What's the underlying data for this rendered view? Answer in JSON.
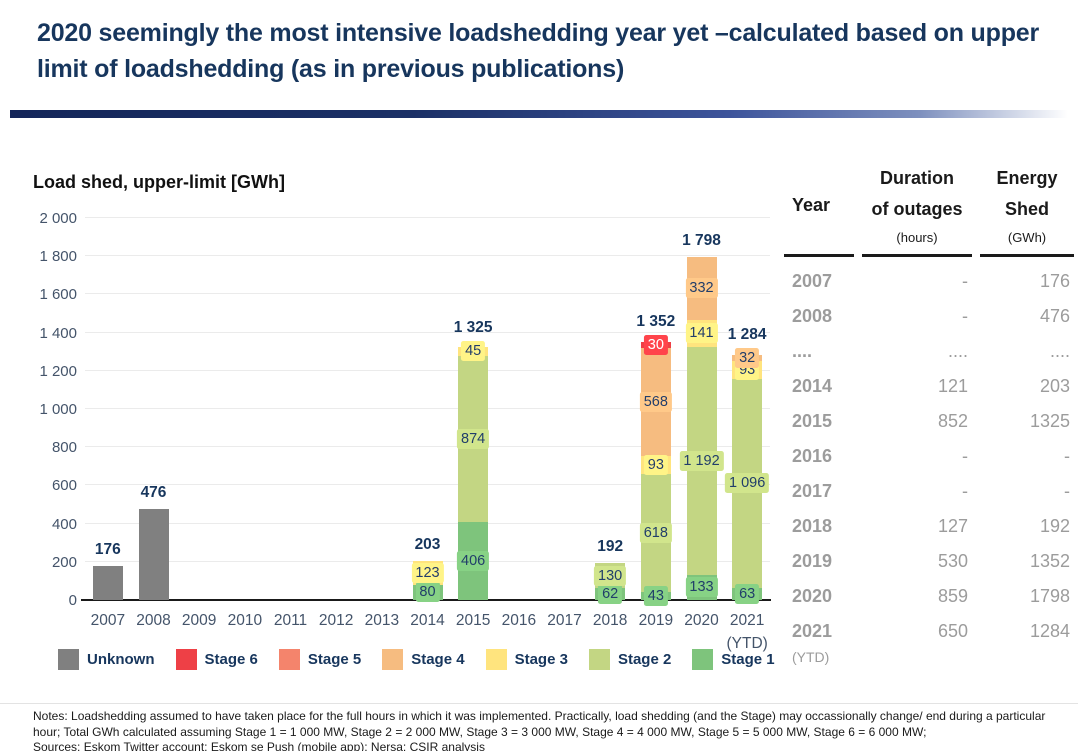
{
  "slide": {
    "title": "2020 seemingly the most intensive loadshedding year yet –calculated based on upper limit of loadshedding (as in previous publications)",
    "notes": "Notes: Loadshedding assumed to have taken place for the full hours in which it was implemented.  Practically, load shedding (and the Stage) may occassionally change/ end during a particular hour; Total GWh calculated assuming Stage 1 = 1 000 MW, Stage 2 = 2 000 MW, Stage 3 = 3 000 MW, Stage 4 = 4 000 MW, Stage 5 = 5 000 MW, Stage 6 = 6 000 MW;",
    "sources": "Sources: Eskom Twitter account; Eskom se Push (mobile app); Nersa; CSIR analysis"
  },
  "chart_data": {
    "type": "bar",
    "stacked": true,
    "title": "Load shed, upper-limit [GWh]",
    "xlabel": "",
    "ylabel": "Load shed, upper-limit [GWh]",
    "ylim": [
      0,
      2000
    ],
    "ytick_step": 200,
    "grid": true,
    "legend_position": "bottom",
    "categories": [
      "2007",
      "2008",
      "2009",
      "2010",
      "2011",
      "2012",
      "2013",
      "2014",
      "2015",
      "2016",
      "2017",
      "2018",
      "2019",
      "2020",
      "2021"
    ],
    "x_sub_label": {
      "index": 14,
      "text": "(YTD)"
    },
    "series": [
      {
        "name": "Stage 1",
        "color": "#7EC47C",
        "values": [
          0,
          0,
          0,
          0,
          0,
          0,
          0,
          80,
          406,
          0,
          0,
          62,
          43,
          133,
          63
        ]
      },
      {
        "name": "Stage 2",
        "color": "#C3D683",
        "values": [
          0,
          0,
          0,
          0,
          0,
          0,
          0,
          0,
          874,
          0,
          0,
          130,
          618,
          1192,
          1096
        ]
      },
      {
        "name": "Stage 3",
        "color": "#FFE47E",
        "values": [
          0,
          0,
          0,
          0,
          0,
          0,
          0,
          123,
          45,
          0,
          0,
          0,
          93,
          141,
          93
        ]
      },
      {
        "name": "Stage 4",
        "color": "#F6BC80",
        "values": [
          0,
          0,
          0,
          0,
          0,
          0,
          0,
          0,
          0,
          0,
          0,
          0,
          568,
          332,
          32
        ]
      },
      {
        "name": "Stage 5",
        "color": "#F4846C",
        "values": [
          0,
          0,
          0,
          0,
          0,
          0,
          0,
          0,
          0,
          0,
          0,
          0,
          0,
          0,
          0
        ]
      },
      {
        "name": "Stage 6",
        "color": "#EE4046",
        "label_color": "#FFFFFF",
        "values": [
          0,
          0,
          0,
          0,
          0,
          0,
          0,
          0,
          0,
          0,
          0,
          0,
          30,
          0,
          0
        ]
      },
      {
        "name": "Unknown",
        "color": "#808080",
        "show_labels": false,
        "values": [
          176,
          476,
          0,
          0,
          0,
          0,
          0,
          0,
          0,
          0,
          0,
          0,
          0,
          0,
          0
        ]
      }
    ],
    "totals": [
      "176",
      "476",
      "",
      "",
      "",
      "",
      "",
      "203",
      "1 325",
      "",
      "",
      "192",
      "1 352",
      "1 798",
      "1 284"
    ],
    "legend": [
      {
        "label": "Unknown",
        "color": "#808080"
      },
      {
        "label": "Stage 6",
        "color": "#EE4046"
      },
      {
        "label": "Stage 5",
        "color": "#F4846C"
      },
      {
        "label": "Stage 4",
        "color": "#F6BC80"
      },
      {
        "label": "Stage 3",
        "color": "#FFE47E"
      },
      {
        "label": "Stage 2",
        "color": "#C3D683"
      },
      {
        "label": "Stage 1",
        "color": "#7EC47C"
      }
    ]
  },
  "table": {
    "headers": {
      "year": "Year",
      "duration_line1": "Duration",
      "duration_line2": "of outages",
      "duration_unit": "(hours)",
      "energy_line1": "Energy",
      "energy_line2": "Shed",
      "energy_unit": "(GWh)"
    },
    "rows": [
      {
        "year": "2007",
        "duration": "-",
        "energy": "176"
      },
      {
        "year": "2008",
        "duration": "-",
        "energy": "476"
      },
      {
        "year": "....",
        "duration": "....",
        "energy": "...."
      },
      {
        "year": "2014",
        "duration": "121",
        "energy": "203"
      },
      {
        "year": "2015",
        "duration": "852",
        "energy": "1325"
      },
      {
        "year": "2016",
        "duration": "-",
        "energy": "-"
      },
      {
        "year": "2017",
        "duration": "-",
        "energy": "-"
      },
      {
        "year": "2018",
        "duration": "127",
        "energy": "192"
      },
      {
        "year": "2019",
        "duration": "530",
        "energy": "1352"
      },
      {
        "year": "2020",
        "duration": "859",
        "energy": "1798"
      },
      {
        "year": "2021",
        "year_sub": "(YTD)",
        "duration": "650",
        "energy": "1284",
        "muted": true
      }
    ]
  },
  "colors": {
    "accent_navy": "#17365D",
    "axis_text": "#44546A",
    "gridline": "#EBEBEB"
  }
}
